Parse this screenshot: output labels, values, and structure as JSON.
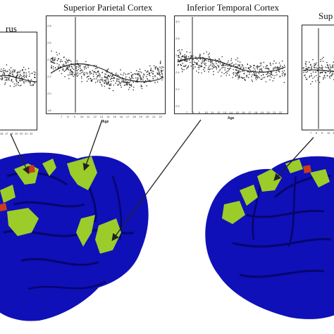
{
  "titles": {
    "left_partial": "rus",
    "superior_parietal": "Superior Parietal Cortex",
    "inferior_temporal": "Inferior Temporal Cortex",
    "right_partial": "Sup"
  },
  "axis": {
    "xlabel": "Age",
    "xticks": [
      "7",
      "8",
      "9",
      "10",
      "11",
      "12",
      "13",
      "14",
      "15",
      "16",
      "17",
      "18",
      "19",
      "20",
      "21",
      "22"
    ],
    "yticks_spc": [
      "2.8",
      "2.6",
      "2.4",
      "2.2",
      "2.0",
      "1.8"
    ],
    "yticks_itc": [
      "3.0",
      "2.8",
      "2.6",
      "2.4",
      "2.2",
      "2.0"
    ]
  },
  "colors": {
    "brain_blue": "#1010b8",
    "brain_dark": "#06066e",
    "significant_green": "#9ccc2a",
    "highlight_red": "#c83c1e"
  }
}
